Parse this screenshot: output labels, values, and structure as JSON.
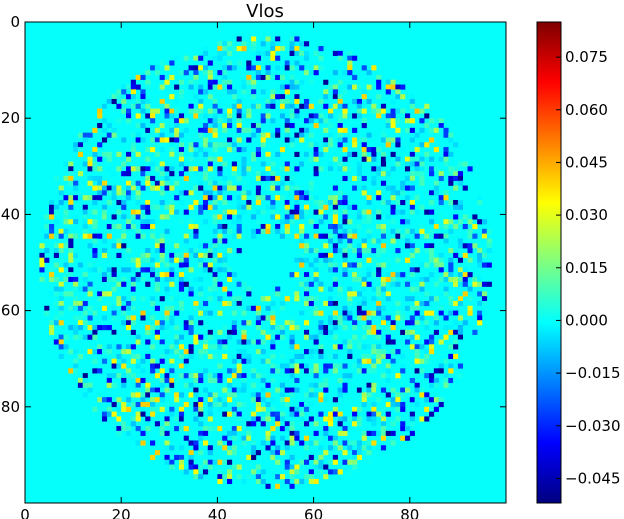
{
  "chart_data": {
    "type": "heatmap",
    "title": "Vlos",
    "colormap": "jet",
    "xlim": [
      0,
      100
    ],
    "ylim": [
      100,
      0
    ],
    "x_ticks": [
      0,
      20,
      40,
      60,
      80
    ],
    "y_ticks": [
      0,
      20,
      40,
      60,
      80
    ],
    "x_tick_labels": [
      "0",
      "20",
      "40",
      "60",
      "80"
    ],
    "y_tick_labels": [
      "0",
      "20",
      "40",
      "60",
      "80"
    ],
    "disk": {
      "center": [
        49.5,
        49.5
      ],
      "radius": 47,
      "inner_hole_radius": 6
    },
    "colorbar": {
      "range": [
        -0.052,
        0.085
      ],
      "ticks": [
        -0.045,
        -0.03,
        -0.015,
        0.0,
        0.015,
        0.03,
        0.045,
        0.06,
        0.075
      ],
      "tick_labels": [
        "−0.045",
        "−0.030",
        "−0.015",
        "0.000",
        "0.015",
        "0.030",
        "0.045",
        "0.060",
        "0.075"
      ]
    },
    "background_value": 0.0
  },
  "colors": {
    "jet_stops": [
      "#00007f",
      "#0000ff",
      "#007fff",
      "#00ffff",
      "#7fff7f",
      "#ffff00",
      "#ff7f00",
      "#ff0000",
      "#7f0000"
    ]
  }
}
